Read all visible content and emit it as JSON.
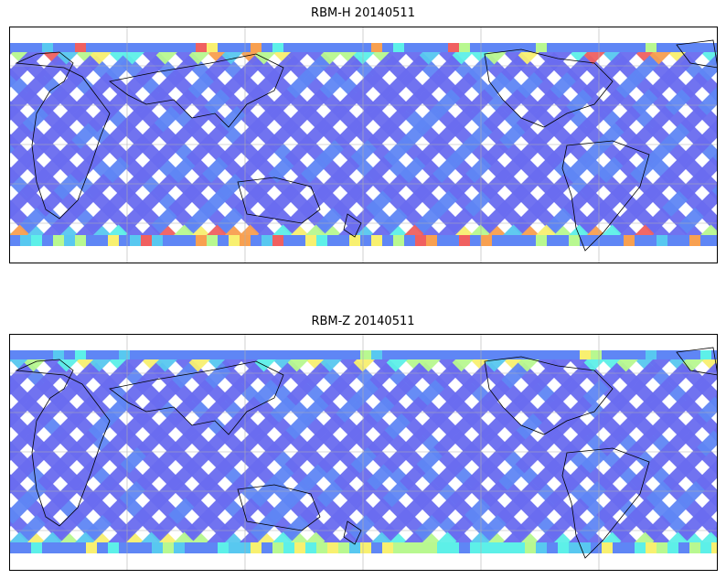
{
  "panels": [
    {
      "title": "RBM-H 20140511",
      "swath_colors": [
        "#6a6cf0",
        "#5f86f5",
        "#58c8f0",
        "#5df0e8",
        "#b8f890",
        "#f8f070",
        "#f8a050",
        "#f06060"
      ]
    },
    {
      "title": "RBM-Z 20140511",
      "swath_colors": [
        "#6a6cf0",
        "#5f86f5",
        "#58c8f0",
        "#5df0e8",
        "#b8f890",
        "#f8f070"
      ]
    }
  ],
  "colors": {
    "low": "#6a6cf0",
    "mid_low": "#5f86f5",
    "mid": "#5df0e8",
    "mid_high": "#b8f890",
    "high": "#f8f070",
    "very_high": "#f06060",
    "coastline": "#000000",
    "gridline": "#b0b0b0"
  }
}
